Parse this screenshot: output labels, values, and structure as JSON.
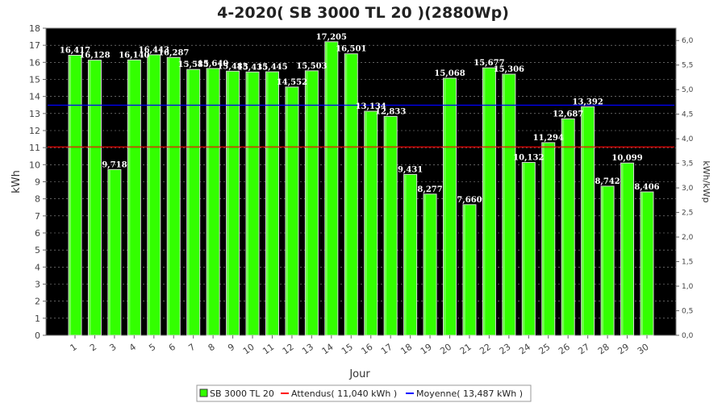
{
  "chart_data": {
    "type": "bar",
    "title": "4-2020( SB 3000 TL 20 )(2880Wp)",
    "xlabel": "Jour",
    "ylabel": "kWh",
    "y2label": "kWh/kWp",
    "ylim": [
      0,
      18
    ],
    "y2lim": [
      0,
      6.25
    ],
    "yticks": [
      0,
      1,
      2,
      3,
      4,
      5,
      6,
      7,
      8,
      9,
      10,
      11,
      12,
      13,
      14,
      15,
      16,
      17,
      18
    ],
    "y2ticks": [
      "0,0",
      "0,5",
      "1,0",
      "1,5",
      "2,0",
      "2,5",
      "3,0",
      "3,5",
      "4,0",
      "4,5",
      "5,0",
      "5,5",
      "6,0"
    ],
    "y2tick_values": [
      0,
      0.5,
      1.0,
      1.5,
      2.0,
      2.5,
      3.0,
      3.5,
      4.0,
      4.5,
      5.0,
      5.5,
      6.0
    ],
    "categories": [
      "1",
      "2",
      "3",
      "4",
      "5",
      "6",
      "7",
      "8",
      "9",
      "10",
      "11",
      "12",
      "13",
      "14",
      "15",
      "16",
      "17",
      "18",
      "19",
      "20",
      "21",
      "22",
      "23",
      "24",
      "25",
      "26",
      "27",
      "28",
      "29",
      "30"
    ],
    "series": [
      {
        "name": "SB 3000 TL 20",
        "color": "#33ff00",
        "values": [
          16.417,
          16.128,
          9.718,
          16.14,
          16.443,
          16.287,
          15.585,
          15.64,
          15.483,
          15.435,
          15.445,
          14.552,
          15.503,
          17.205,
          16.501,
          13.134,
          12.833,
          9.431,
          8.277,
          15.068,
          7.66,
          15.677,
          15.306,
          10.132,
          11.294,
          12.687,
          13.392,
          8.742,
          10.099,
          8.406
        ],
        "labels": [
          "16,417",
          "16,128",
          "9,718",
          "16,140",
          "16,443",
          "16,287",
          "15,585",
          "15,640",
          "15,483",
          "15,435",
          "15,445",
          "14,552",
          "15,503",
          "17,205",
          "16,501",
          "13,134",
          "12,833",
          "9,431",
          "8,277",
          "15,068",
          "7,660",
          "15,677",
          "15,306",
          "10,132",
          "11,294",
          "12,687",
          "13,392",
          "8,742",
          "10,099",
          "8,406"
        ]
      }
    ],
    "reference_lines": [
      {
        "name": "Attendus( 11,040 kWh )",
        "value": 11.04,
        "color": "#ff0000"
      },
      {
        "name": "Moyenne( 13,487 kWh )",
        "value": 13.487,
        "color": "#0000ff"
      }
    ],
    "plot_background": "#000000",
    "grid": true,
    "legend_position": "bottom"
  }
}
